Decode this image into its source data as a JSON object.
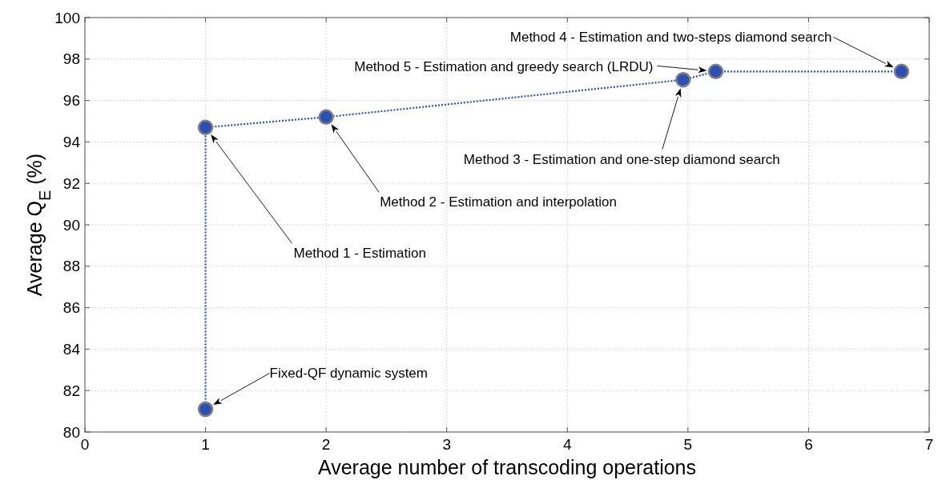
{
  "chart_data": {
    "type": "line",
    "xlabel": "Average number of transcoding operations",
    "ylabel": "Average Q$_{E}$ (%)",
    "x": [
      1,
      1,
      2,
      4.96,
      5.23,
      6.77
    ],
    "series": [
      {
        "color": "#2b4fb5",
        "values": [
          81.1,
          94.7,
          95.2,
          97.0,
          97.4,
          97.4
        ]
      }
    ],
    "xlim": [
      0,
      7
    ],
    "xticks": [
      0,
      1,
      2,
      3,
      4,
      5,
      6,
      7
    ],
    "ylim": [
      80,
      100
    ],
    "yticks": [
      80,
      82,
      84,
      86,
      88,
      90,
      92,
      94,
      96,
      98,
      100
    ],
    "grid": true,
    "marker": "circle",
    "line_style": "dotted",
    "annotations": [
      "Fixed-QF dynamic system",
      "Method 1 - Estimation",
      "Method 2 - Estimation and interpolation",
      "Method 3 - Estimation and one-step diamond search",
      "Method 5 - Estimation and greedy search (LRDU)",
      "Method 4 - Estimation and two-steps diamond search"
    ]
  }
}
